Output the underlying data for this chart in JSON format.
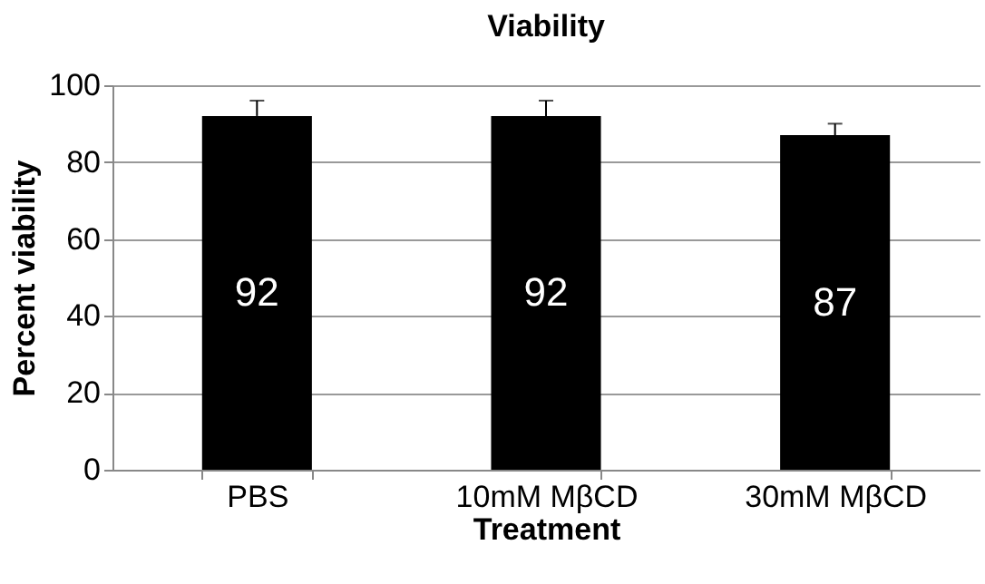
{
  "chart_data": {
    "type": "bar",
    "title": "Viability",
    "xlabel": "Treatment",
    "ylabel": "Percent viability",
    "categories": [
      "PBS",
      "10mM MβCD",
      "30mM MβCD"
    ],
    "values": [
      92,
      92,
      87
    ],
    "color": "#000000",
    "errors": [
      [
        92,
        96
      ],
      [
        92,
        96
      ],
      [
        87,
        90
      ]
    ],
    "ylim": [
      0,
      100
    ],
    "yticks": [
      0,
      20,
      40,
      60,
      80,
      100
    ],
    "grid": "y",
    "data_labels": true
  }
}
